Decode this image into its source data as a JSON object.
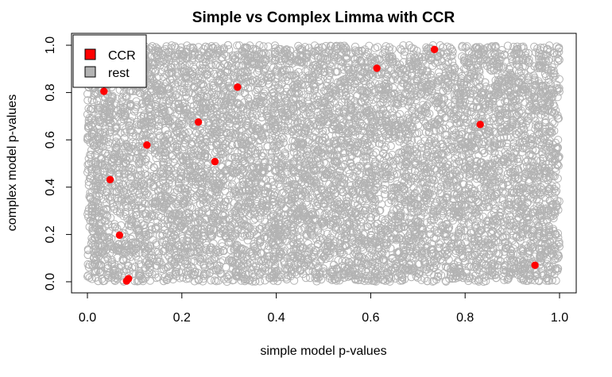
{
  "chart_data": {
    "type": "scatter",
    "title": "Simple vs Complex Limma with CCR",
    "xlabel": "simple model p-values",
    "ylabel": "complex model p-values",
    "xlim": [
      0.0,
      1.0
    ],
    "ylim": [
      0.0,
      1.0
    ],
    "xticks": [
      "0.0",
      "0.2",
      "0.4",
      "0.6",
      "0.8",
      "1.0"
    ],
    "yticks": [
      "0.0",
      "0.2",
      "0.4",
      "0.6",
      "0.8",
      "1.0"
    ],
    "grid": false,
    "legend": {
      "position": "top-left",
      "entries": [
        {
          "label": "CCR",
          "color": "#ff0000"
        },
        {
          "label": "rest",
          "color": "#b3b3b3"
        }
      ]
    },
    "series": [
      {
        "name": "rest",
        "color": "#b3b3b3",
        "marker": "open-circle",
        "distribution": "dense uniform cloud covering [0,1] x [0,1]"
      },
      {
        "name": "CCR",
        "color": "#ff0000",
        "marker": "filled-circle",
        "points": [
          {
            "x": 0.035,
            "y": 0.805
          },
          {
            "x": 0.048,
            "y": 0.432
          },
          {
            "x": 0.068,
            "y": 0.197
          },
          {
            "x": 0.083,
            "y": 0.003
          },
          {
            "x": 0.087,
            "y": 0.013
          },
          {
            "x": 0.126,
            "y": 0.578
          },
          {
            "x": 0.235,
            "y": 0.675
          },
          {
            "x": 0.27,
            "y": 0.508
          },
          {
            "x": 0.318,
            "y": 0.823
          },
          {
            "x": 0.613,
            "y": 0.903
          },
          {
            "x": 0.735,
            "y": 0.982
          },
          {
            "x": 0.832,
            "y": 0.665
          },
          {
            "x": 0.948,
            "y": 0.07
          }
        ]
      }
    ]
  }
}
